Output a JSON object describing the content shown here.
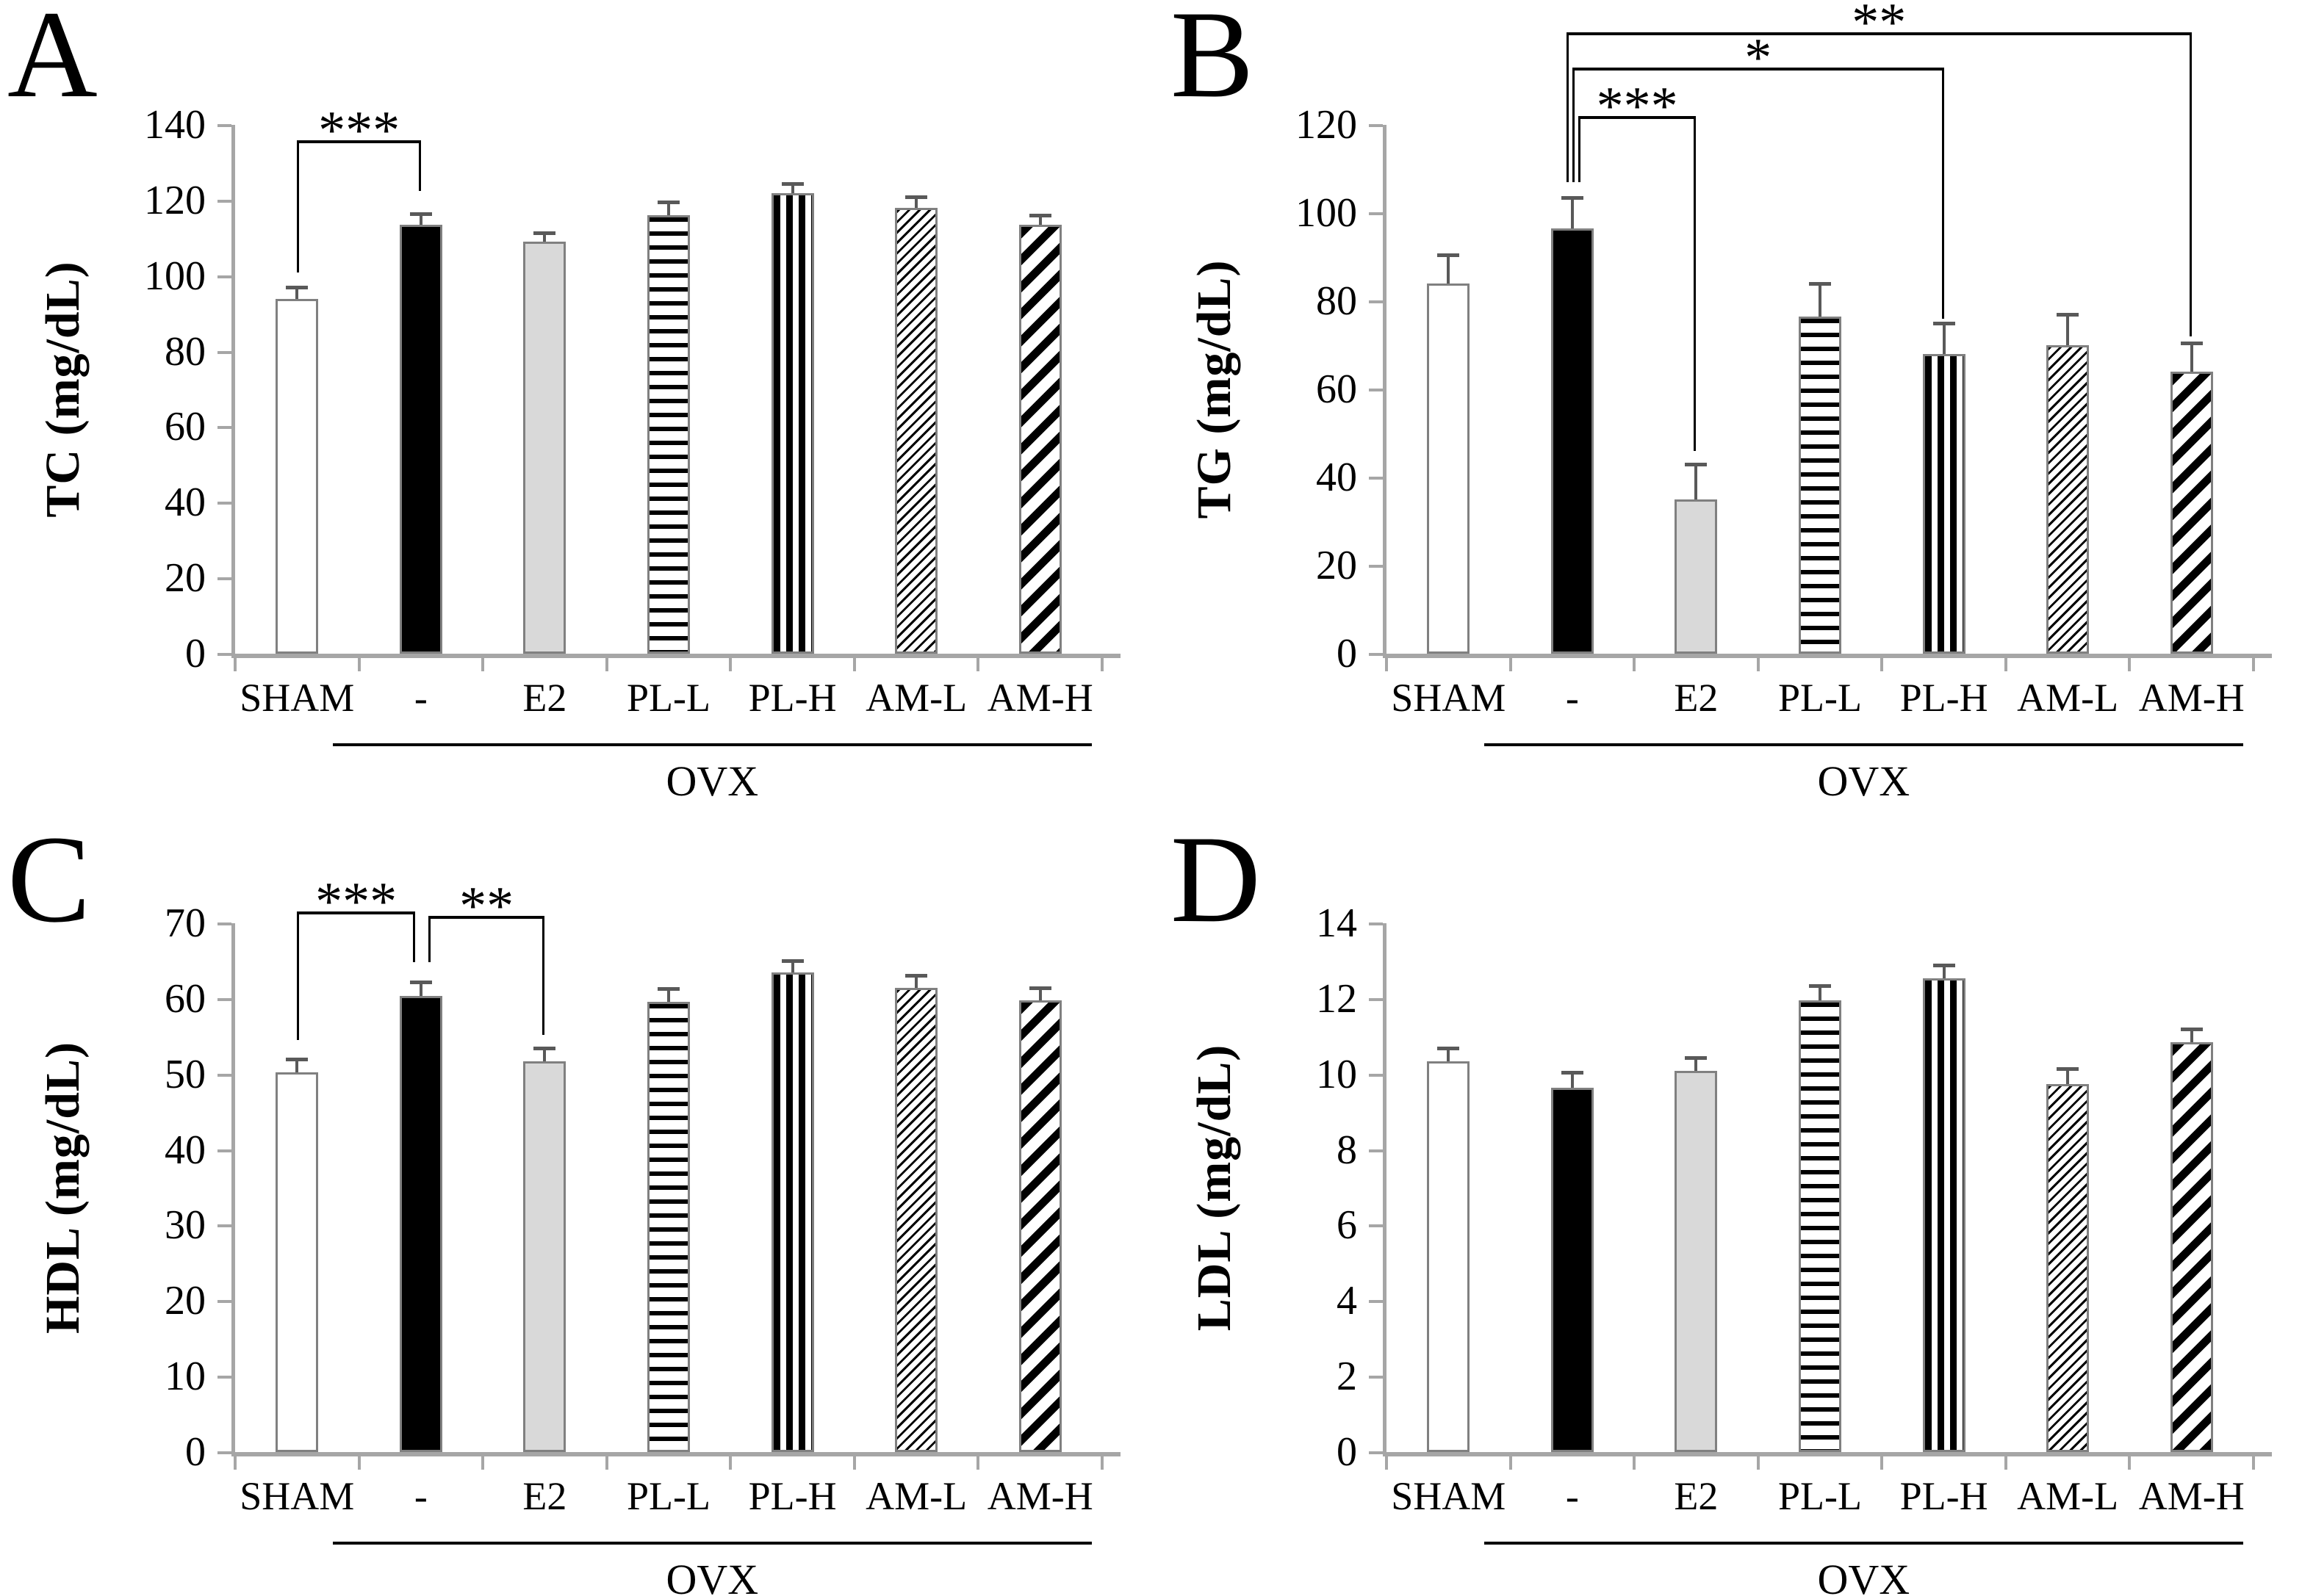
{
  "colors": {
    "axis": "#a6a6a6",
    "bar_border": "#808080",
    "error_bar": "#595959",
    "bracket": "#000000",
    "solid_fill": "#000000",
    "light_gray_fill": "#d9d9d9",
    "background": "#ffffff"
  },
  "chart_data": [
    {
      "type": "bar",
      "panel": "A",
      "ylabel": "TC (mg/dL)",
      "ylim": [
        0,
        140
      ],
      "ytick_step": 20,
      "grid": false,
      "legend": "none",
      "categories": [
        "SHAM",
        "-",
        "E2",
        "PL-L",
        "PL-H",
        "AM-L",
        "AM-H"
      ],
      "values": [
        94,
        113.5,
        109,
        116,
        122,
        118,
        113.5
      ],
      "errors": [
        3,
        3,
        2.5,
        3.5,
        2.5,
        3,
        2.5
      ],
      "bar_styles": [
        "white",
        "solid-black",
        "light-gray",
        "horizontal-stripes",
        "vertical-stripes",
        "thin-diagonal",
        "thick-diagonal"
      ],
      "group_underline": {
        "label": "OVX",
        "from_index": 1,
        "to_index": 6
      },
      "significance": [
        {
          "from": 0,
          "to": 1,
          "label": "***",
          "bar_y": 136,
          "left_drop_to": 101,
          "right_drop_to": 122.5,
          "left_offset": 0,
          "right_offset": 0
        }
      ]
    },
    {
      "type": "bar",
      "panel": "B",
      "ylabel": "TG (mg/dL)",
      "ylim": [
        0,
        120
      ],
      "ytick_step": 20,
      "grid": false,
      "legend": "none",
      "categories": [
        "SHAM",
        "-",
        "E2",
        "PL-L",
        "PL-H",
        "AM-L",
        "AM-H"
      ],
      "values": [
        84,
        96.5,
        35,
        76.5,
        68,
        70,
        64
      ],
      "errors": [
        6.5,
        7,
        8,
        7.5,
        7,
        7,
        6.5
      ],
      "bar_styles": [
        "white",
        "solid-black",
        "light-gray",
        "horizontal-stripes",
        "vertical-stripes",
        "thin-diagonal",
        "thick-diagonal"
      ],
      "group_underline": {
        "label": "OVX",
        "from_index": 1,
        "to_index": 6
      },
      "significance": [
        {
          "from": 1,
          "to": 2,
          "label": "***",
          "bar_y": 122,
          "left_drop_to": 107,
          "right_drop_to": 46,
          "left_offset": 8,
          "right_offset": 0
        },
        {
          "from": 1,
          "to": 4,
          "label": "*",
          "bar_y": 133,
          "left_drop_to": 107,
          "right_drop_to": 76,
          "left_offset": 0,
          "right_offset": 0
        },
        {
          "from": 1,
          "to": 6,
          "label": "**",
          "bar_y": 141,
          "left_drop_to": 107,
          "right_drop_to": 72,
          "left_offset": -8,
          "right_offset": 0
        }
      ]
    },
    {
      "type": "bar",
      "panel": "C",
      "ylabel": "HDL (mg/dL)",
      "ylim": [
        0,
        70
      ],
      "ytick_step": 10,
      "grid": false,
      "legend": "none",
      "categories": [
        "SHAM",
        "-",
        "E2",
        "PL-L",
        "PL-H",
        "AM-L",
        "AM-H"
      ],
      "values": [
        50.3,
        60.4,
        51.7,
        59.6,
        63.5,
        61.4,
        59.8
      ],
      "errors": [
        1.7,
        1.8,
        1.8,
        1.7,
        1.5,
        1.7,
        1.6
      ],
      "bar_styles": [
        "white",
        "solid-black",
        "light-gray",
        "horizontal-stripes",
        "vertical-stripes",
        "thin-diagonal",
        "thick-diagonal"
      ],
      "group_underline": {
        "label": "OVX",
        "from_index": 1,
        "to_index": 6
      },
      "significance": [
        {
          "from": 0,
          "to": 1,
          "label": "***",
          "bar_y": 71.6,
          "left_drop_to": 54.5,
          "right_drop_to": 64.8,
          "left_offset": 0,
          "right_offset": -8
        },
        {
          "from": 1,
          "to": 2,
          "label": "**",
          "bar_y": 71.0,
          "left_drop_to": 64.8,
          "right_drop_to": 55.2,
          "left_offset": 10,
          "right_offset": 0
        }
      ]
    },
    {
      "type": "bar",
      "panel": "D",
      "ylabel": "LDL (mg/dL)",
      "ylim": [
        0,
        14
      ],
      "ytick_step": 2,
      "grid": false,
      "legend": "none",
      "categories": [
        "SHAM",
        "-",
        "E2",
        "PL-L",
        "PL-H",
        "AM-L",
        "AM-H"
      ],
      "values": [
        10.35,
        9.65,
        10.1,
        11.95,
        12.55,
        9.75,
        10.85
      ],
      "errors": [
        0.35,
        0.4,
        0.35,
        0.4,
        0.35,
        0.4,
        0.35
      ],
      "bar_styles": [
        "white",
        "solid-black",
        "light-gray",
        "horizontal-stripes",
        "vertical-stripes",
        "thin-diagonal",
        "thick-diagonal"
      ],
      "group_underline": {
        "label": "OVX",
        "from_index": 1,
        "to_index": 6
      },
      "significance": []
    }
  ]
}
